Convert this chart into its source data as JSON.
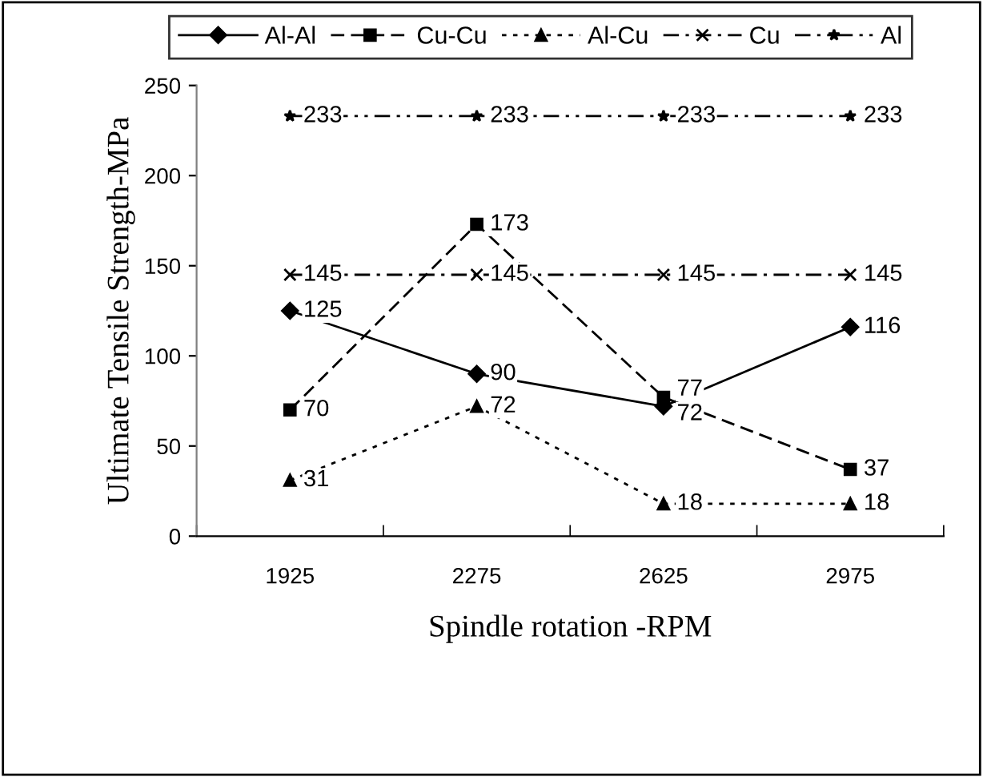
{
  "chart_data": {
    "type": "line",
    "xlabel": "Spindle rotation -RPM",
    "ylabel": "Ultimate Tensile Strength-MPa",
    "categories": [
      "1925",
      "2275",
      "2625",
      "2975"
    ],
    "series": [
      {
        "name": "Al-Al",
        "color": "#000000",
        "values": [
          125,
          90,
          72,
          116
        ],
        "marker": "diamond",
        "line_style": "solid"
      },
      {
        "name": "Cu-Cu",
        "color": "#000000",
        "values": [
          70,
          173,
          77,
          37
        ],
        "marker": "square",
        "line_style": "dashed"
      },
      {
        "name": "Al-Cu",
        "color": "#000000",
        "values": [
          31,
          72,
          18,
          18
        ],
        "marker": "triangle",
        "line_style": "dotted"
      },
      {
        "name": "Cu",
        "color": "#000000",
        "values": [
          145,
          145,
          145,
          145
        ],
        "marker": "cross",
        "line_style": "dashdot"
      },
      {
        "name": "Al",
        "color": "#000000",
        "values": [
          233,
          233,
          233,
          233
        ],
        "marker": "star",
        "line_style": "dashdotdot"
      }
    ],
    "ylim": [
      0,
      250
    ],
    "yticks": [
      0,
      50,
      100,
      150,
      200,
      250
    ],
    "data_labels": true,
    "legend": "top",
    "grid": false
  }
}
